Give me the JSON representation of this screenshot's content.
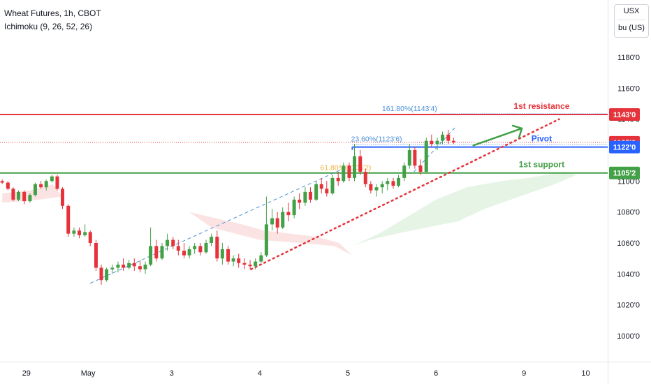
{
  "header": {
    "title": "Wheat Futures, 1h, CBOT",
    "indicator": "Ichimoku (9, 26, 52, 26)"
  },
  "unit_selector": {
    "currency": "USX",
    "unit": "bu (US)"
  },
  "colors": {
    "resistance": "#e5323b",
    "pivot": "#2962ff",
    "support": "#43a047",
    "bull": "#26a69a",
    "candle_up": "#43a047",
    "candle_down": "#e5323b",
    "fib_line": "#4a90d9",
    "fib_618": "#f0b43a",
    "trendline": "#e5323b",
    "arrow": "#43a047",
    "cloud_red": "#fbe3e3",
    "cloud_green": "#e6f4e6"
  },
  "chart_data": {
    "type": "candlestick",
    "symbol": "Wheat Futures",
    "interval": "1h",
    "exchange": "CBOT",
    "y_axis": {
      "range": [
        990,
        1190
      ],
      "ticks": [
        "1180'0",
        "1160'0",
        "1140'0",
        "1100'0",
        "1080'0",
        "1060'0",
        "1040'0",
        "1020'0",
        "1000'0"
      ],
      "tick_values": [
        1180,
        1160,
        1140,
        1100,
        1080,
        1060,
        1040,
        1020,
        1000
      ]
    },
    "x_axis": {
      "range": [
        0,
        13.8
      ],
      "ticks": [
        "29",
        "May",
        "3",
        "4",
        "5",
        "6",
        "9",
        "10"
      ],
      "tick_positions": [
        0.6,
        2.0,
        3.9,
        5.9,
        7.9,
        9.9,
        11.9,
        13.3
      ]
    },
    "levels": [
      {
        "name": "1st resistance",
        "value": 1143.0,
        "label": "1143'0",
        "color": "#e5323b"
      },
      {
        "name": "Pivot",
        "value": 1122.0,
        "label": "1122'0",
        "color": "#2962ff"
      },
      {
        "name": "1st support",
        "value": 1105.25,
        "label": "1105'2",
        "color": "#43a047"
      }
    ],
    "price_tags": [
      {
        "label": "1143'0",
        "value": 1143.0,
        "color": "#e5323b"
      },
      {
        "label": "1125'0",
        "value": 1125.0,
        "color": "#e5323b"
      },
      {
        "label": "1122'0",
        "value": 1122.0,
        "color": "#2962ff"
      },
      {
        "label": "1105'2",
        "value": 1105.25,
        "color": "#43a047"
      }
    ],
    "fibonacci": [
      {
        "label": "161.80%(1143'4)",
        "value": 1143.5,
        "color": "#4a90d9"
      },
      {
        "label": "23.60%(1123'6)",
        "value": 1123.75,
        "color": "#4a90d9"
      },
      {
        "label": "61.80%(1105'2)",
        "value": 1105.25,
        "color": "#f0b43a"
      }
    ],
    "annotations": [
      {
        "text": "1st resistance",
        "color": "#e5323b"
      },
      {
        "text": "Pivot",
        "color": "#2962ff"
      },
      {
        "text": "1st support",
        "color": "#43a047"
      }
    ],
    "candles": [
      [
        0.05,
        1100,
        1101,
        1098,
        1099
      ],
      [
        0.18,
        1099,
        1100,
        1094,
        1095
      ],
      [
        0.3,
        1095,
        1096,
        1087,
        1088
      ],
      [
        0.42,
        1088,
        1094,
        1087,
        1093
      ],
      [
        0.55,
        1093,
        1094,
        1085,
        1087
      ],
      [
        0.68,
        1087,
        1092,
        1086,
        1091
      ],
      [
        0.8,
        1091,
        1099,
        1090,
        1098
      ],
      [
        0.93,
        1098,
        1100,
        1095,
        1096
      ],
      [
        1.05,
        1096,
        1101,
        1094,
        1100
      ],
      [
        1.18,
        1100,
        1104,
        1099,
        1103
      ],
      [
        1.3,
        1103,
        1104,
        1094,
        1095
      ],
      [
        1.42,
        1095,
        1096,
        1082,
        1084
      ],
      [
        1.55,
        1084,
        1085,
        1064,
        1066
      ],
      [
        1.68,
        1066,
        1070,
        1064,
        1068
      ],
      [
        1.8,
        1068,
        1070,
        1063,
        1065
      ],
      [
        1.93,
        1065,
        1072,
        1064,
        1067
      ],
      [
        2.05,
        1067,
        1068,
        1058,
        1060
      ],
      [
        2.18,
        1060,
        1062,
        1042,
        1044
      ],
      [
        2.3,
        1044,
        1046,
        1033,
        1036
      ],
      [
        2.42,
        1036,
        1044,
        1035,
        1043
      ],
      [
        2.55,
        1043,
        1046,
        1040,
        1044
      ],
      [
        2.68,
        1044,
        1048,
        1041,
        1046
      ],
      [
        2.8,
        1046,
        1050,
        1042,
        1044
      ],
      [
        2.93,
        1044,
        1049,
        1043,
        1047
      ],
      [
        3.05,
        1047,
        1050,
        1042,
        1045
      ],
      [
        3.18,
        1045,
        1049,
        1041,
        1043
      ],
      [
        3.3,
        1043,
        1048,
        1040,
        1046
      ],
      [
        3.42,
        1046,
        1070,
        1045,
        1058
      ],
      [
        3.55,
        1058,
        1062,
        1048,
        1050
      ],
      [
        3.68,
        1050,
        1060,
        1049,
        1058
      ],
      [
        3.8,
        1058,
        1066,
        1055,
        1062
      ],
      [
        3.93,
        1062,
        1064,
        1056,
        1058
      ],
      [
        4.05,
        1058,
        1062,
        1052,
        1055
      ],
      [
        4.18,
        1055,
        1060,
        1050,
        1052
      ],
      [
        4.3,
        1052,
        1058,
        1050,
        1056
      ],
      [
        4.42,
        1056,
        1060,
        1053,
        1058
      ],
      [
        4.55,
        1058,
        1060,
        1052,
        1054
      ],
      [
        4.68,
        1054,
        1062,
        1053,
        1060
      ],
      [
        4.8,
        1060,
        1066,
        1058,
        1064
      ],
      [
        4.93,
        1064,
        1068,
        1048,
        1050
      ],
      [
        5.05,
        1050,
        1060,
        1046,
        1056
      ],
      [
        5.18,
        1056,
        1058,
        1046,
        1048
      ],
      [
        5.3,
        1048,
        1052,
        1045,
        1050
      ],
      [
        5.42,
        1050,
        1053,
        1044,
        1047
      ],
      [
        5.55,
        1047,
        1050,
        1043,
        1046
      ],
      [
        5.68,
        1046,
        1049,
        1043,
        1045
      ],
      [
        5.8,
        1045,
        1050,
        1043,
        1048
      ],
      [
        5.93,
        1048,
        1054,
        1047,
        1052
      ],
      [
        6.05,
        1052,
        1090,
        1051,
        1072
      ],
      [
        6.18,
        1072,
        1082,
        1068,
        1076
      ],
      [
        6.3,
        1076,
        1080,
        1066,
        1070
      ],
      [
        6.42,
        1070,
        1083,
        1069,
        1080
      ],
      [
        6.55,
        1080,
        1086,
        1074,
        1078
      ],
      [
        6.68,
        1078,
        1090,
        1076,
        1088
      ],
      [
        6.8,
        1088,
        1092,
        1082,
        1086
      ],
      [
        6.93,
        1086,
        1096,
        1084,
        1093
      ],
      [
        7.05,
        1093,
        1096,
        1086,
        1088
      ],
      [
        7.18,
        1088,
        1100,
        1087,
        1098
      ],
      [
        7.3,
        1098,
        1102,
        1092,
        1095
      ],
      [
        7.42,
        1095,
        1100,
        1090,
        1092
      ],
      [
        7.55,
        1092,
        1104,
        1091,
        1102
      ],
      [
        7.68,
        1102,
        1106,
        1097,
        1100
      ],
      [
        7.8,
        1100,
        1112,
        1099,
        1110
      ],
      [
        7.93,
        1110,
        1112,
        1100,
        1102
      ],
      [
        8.05,
        1102,
        1124,
        1100,
        1116
      ],
      [
        8.18,
        1116,
        1120,
        1104,
        1106
      ],
      [
        8.3,
        1106,
        1108,
        1096,
        1098
      ],
      [
        8.42,
        1098,
        1100,
        1092,
        1094
      ],
      [
        8.55,
        1094,
        1098,
        1090,
        1096
      ],
      [
        8.68,
        1096,
        1100,
        1092,
        1098
      ],
      [
        8.8,
        1098,
        1102,
        1094,
        1100
      ],
      [
        8.93,
        1100,
        1102,
        1095,
        1097
      ],
      [
        9.05,
        1097,
        1104,
        1096,
        1102
      ],
      [
        9.18,
        1102,
        1112,
        1100,
        1110
      ],
      [
        9.3,
        1110,
        1124,
        1108,
        1120
      ],
      [
        9.42,
        1120,
        1122,
        1108,
        1110
      ],
      [
        9.55,
        1110,
        1114,
        1104,
        1106
      ],
      [
        9.68,
        1106,
        1128,
        1105,
        1126
      ],
      [
        9.8,
        1126,
        1130,
        1122,
        1124
      ],
      [
        9.93,
        1124,
        1128,
        1120,
        1126
      ],
      [
        10.05,
        1126,
        1132,
        1124,
        1130
      ],
      [
        10.18,
        1130,
        1133,
        1124,
        1126
      ],
      [
        10.3,
        1126,
        1128,
        1124,
        1125
      ]
    ]
  }
}
